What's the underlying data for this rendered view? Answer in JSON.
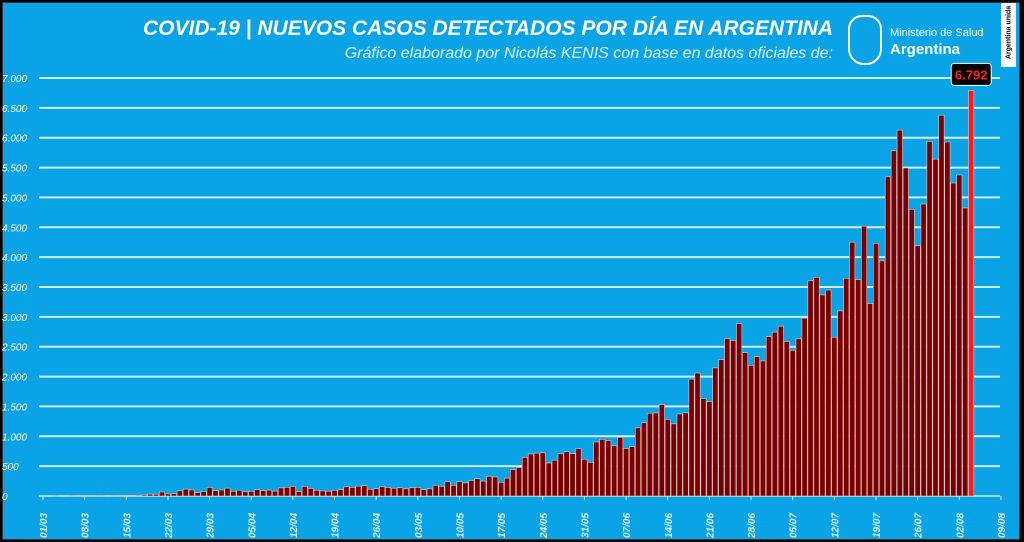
{
  "chart_data": {
    "type": "bar",
    "title": "COVID-19  |  NUEVOS CASOS DETECTADOS POR DÍA EN ARGENTINA",
    "subtitle": "Gráfico elaborado por Nicolás KENIS con base en datos oficiales de:",
    "source_logo": {
      "line1": "Ministerio de Salud",
      "line2": "Argentina"
    },
    "badge": "Argentina unida",
    "ylim": [
      0,
      7000
    ],
    "yticks": [
      0,
      500,
      1000,
      1500,
      2000,
      2500,
      3000,
      3500,
      4000,
      4500,
      5000,
      5500,
      6000,
      6500,
      7000
    ],
    "ytick_labels": [
      "0",
      "500",
      "1.000",
      "1.500",
      "2.000",
      "2.500",
      "3.000",
      "3.500",
      "4.000",
      "4.500",
      "5.000",
      "5.500",
      "6.000",
      "6.500",
      "7.000"
    ],
    "xtick_labels": [
      "01/03",
      "08/03",
      "15/03",
      "22/03",
      "29/03",
      "05/04",
      "12/04",
      "19/04",
      "26/04",
      "03/05",
      "10/05",
      "17/05",
      "24/05",
      "31/05",
      "07/06",
      "14/06",
      "21/06",
      "28/06",
      "05/07",
      "12/07",
      "19/07",
      "26/07",
      "02/08",
      "09/08"
    ],
    "axis_start": "01/03",
    "first_value_day_offset": 2,
    "values": [
      1,
      0,
      0,
      1,
      6,
      1,
      5,
      2,
      12,
      0,
      3,
      11,
      11,
      9,
      14,
      18,
      31,
      30,
      67,
      35,
      41,
      86,
      115,
      101,
      55,
      75,
      146,
      88,
      101,
      132,
      79,
      97,
      69,
      79,
      107,
      90,
      98,
      81,
      136,
      145,
      160,
      73,
      162,
      127,
      95,
      84,
      81,
      96,
      107,
      154,
      143,
      165,
      172,
      111,
      124,
      154,
      143,
      130,
      138,
      120,
      138,
      145,
      105,
      120,
      180,
      160,
      240,
      180,
      240,
      220,
      260,
      290,
      250,
      330,
      320,
      230,
      300,
      440,
      474,
      648,
      704,
      718,
      723,
      552,
      600,
      706,
      741,
      708,
      795,
      616,
      564,
      904,
      949,
      929,
      840,
      983,
      795,
      826,
      1141,
      1226,
      1386,
      1391,
      1531,
      1282,
      1208,
      1374,
      1393,
      1958,
      2060,
      1634,
      1581,
      2146,
      2285,
      2635,
      2606,
      2886,
      2401,
      2189,
      2335,
      2262,
      2667,
      2744,
      2845,
      2590,
      2439,
      2632,
      2979,
      3604,
      3663,
      3367,
      3449,
      2657,
      3099,
      3645,
      4250,
      3623,
      4518,
      3223,
      4231,
      3937,
      5344,
      5782,
      6127,
      5493,
      4802,
      4190,
      4890,
      5939,
      5641,
      6377,
      5929,
      5241,
      5376,
      4824,
      6792
    ],
    "highlight_label": "6.792",
    "colors": {
      "background": "#0aa3e6",
      "bar": "#7a0000",
      "bar_last": "#ff1a1a",
      "grid": "#cfefff"
    }
  }
}
